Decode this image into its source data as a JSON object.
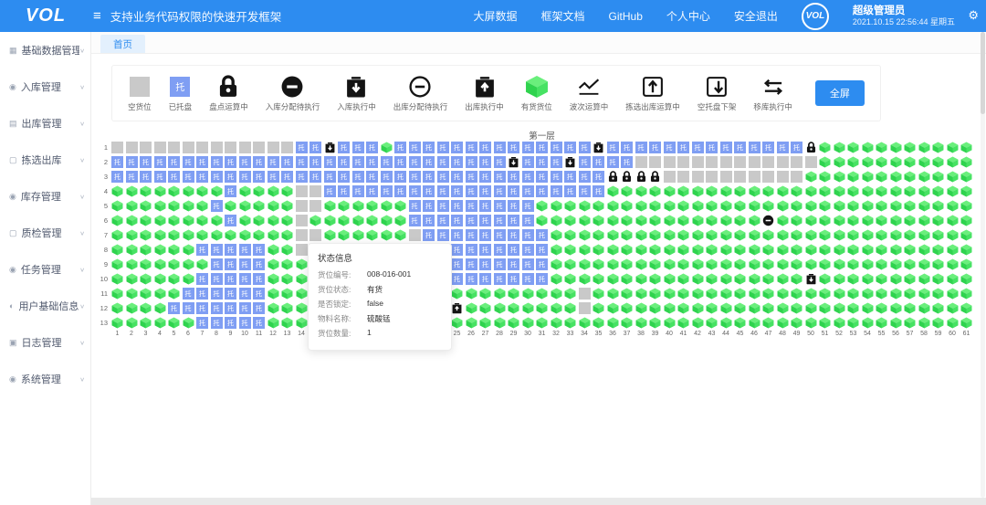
{
  "navbar": {
    "logo": "VOL",
    "menu_icon": "≡",
    "title": "支持业务代码权限的快速开发框架",
    "links": [
      {
        "name": "big-screen-data",
        "label": "大屏数据"
      },
      {
        "name": "framework-docs",
        "label": "框架文档"
      },
      {
        "name": "github",
        "label": "GitHub"
      },
      {
        "name": "personal-center",
        "label": "个人中心"
      },
      {
        "name": "safe-logout",
        "label": "安全退出"
      }
    ],
    "badge": "VOL",
    "user_name": "超级管理员",
    "datetime": "2021.10.15 22:56:44 星期五",
    "gear_icon": "⚙"
  },
  "tabs": [
    {
      "name": "home",
      "label": "首页",
      "active": true
    }
  ],
  "sidebar": {
    "items": [
      {
        "name": "base-data",
        "icon": "▦",
        "label": "基础数据管理"
      },
      {
        "name": "inbound",
        "icon": "◉",
        "label": "入库管理"
      },
      {
        "name": "outbound",
        "icon": "▤",
        "label": "出库管理"
      },
      {
        "name": "pick-out",
        "icon": "▢",
        "label": "拣选出库"
      },
      {
        "name": "inventory",
        "icon": "◉",
        "label": "库存管理"
      },
      {
        "name": "qc",
        "icon": "▢",
        "label": "质检管理"
      },
      {
        "name": "tasks",
        "icon": "◉",
        "label": "任务管理"
      },
      {
        "name": "user-info",
        "icon": "◐",
        "label": "用户基础信息"
      },
      {
        "name": "logs",
        "icon": "▣",
        "label": "日志管理"
      },
      {
        "name": "system",
        "icon": "◉",
        "label": "系统管理"
      }
    ],
    "caret": "∨"
  },
  "legend": {
    "items": [
      {
        "name": "empty-slot",
        "type": "empty",
        "label": "空货位"
      },
      {
        "name": "palletized",
        "type": "pallet",
        "label": "已托盘"
      },
      {
        "name": "stocktake-running",
        "type": "lock",
        "label": "盘点运算中"
      },
      {
        "name": "inbound-assign-pending",
        "type": "minus-filled",
        "label": "入库分配待执行"
      },
      {
        "name": "inbound-executing",
        "type": "box-down",
        "label": "入库执行中"
      },
      {
        "name": "outbound-assign-pending",
        "type": "minus-outline",
        "label": "出库分配待执行"
      },
      {
        "name": "outbound-executing",
        "type": "box-up",
        "label": "出库执行中"
      },
      {
        "name": "occupied-slot",
        "type": "cube",
        "label": "有货货位"
      },
      {
        "name": "wave-running",
        "type": "wave",
        "label": "波次运算中"
      },
      {
        "name": "pick-outbound-running",
        "type": "box-up-outline",
        "label": "拣选出库运算中"
      },
      {
        "name": "empty-pallet-down",
        "type": "box-down-outline",
        "label": "空托盘下架"
      },
      {
        "name": "move-executing",
        "type": "move",
        "label": "移库执行中"
      }
    ],
    "fullscreen_label": "全屏"
  },
  "board": {
    "layer_label": "第一层",
    "pallet_glyph": "托",
    "column_count": 61,
    "row_count": 13,
    "cell_types": {
      "E": "empty",
      "P": "pallet",
      "G": "cube",
      "L": "lock",
      "D": "box-down",
      "U": "box-up",
      "M": "minus-filled",
      "O": "minus-outline"
    },
    "rows": [
      "EEEEEEEEEEEEEPPDPPPGPPPPPPPPPPPPPPDPPPPPPPPPPPPPPLGGGGGGGGGGG",
      "PPPPPPPPPPPPPPPPPPPPPPPPPPPPDPPPDPPPPEEEEEEEEEEEEEGGGGGGGGGGG",
      "PPPPPPPPPPPPPPPPPPPPPPPPPPPPPPPPPPPLLLLEEEEEEEEEEGGGGGGGGGGGG",
      "GGGGGGGGPGGGGEEPPPPPPPPPPPPPPPPPPPPGGGGGGGGGGGGGGGGGGGGGGGGGG",
      "GGGGGGGPGGGGGEEGGGGGGPPPPPPPPPGGGGGGGGGGGGGGGGGGGGGGGGGGGGGGG",
      "GGGGGGGGPGGGGEGGGGGGGPPPPPPPPPGGGGGGGGGGGGGGGGMGGGGGGGGGGGGGG",
      "GGGGGGGGGGGGGEEGGGGGGEPPPPPPPPPGGGGGGGGGGGGGGGGGGGGGGGGGGGGGG",
      "GGGGGGPPPPPGGELGGGGGGEPPPPPPPPPGGGGGGGGGGGGGGGGGGGGGGGGGGGGGG",
      "GGGGGGGPPPPGGGGGGGGGGEPPPPPPPPPGGGGGGGGGGGGGGGGGGGGGGGGGGGGGG",
      "GGGGGGPPPPPGGGGGGGGGGEEPPPPPPPPGGGGGGGGGGGGGGGGGGDGGGGGGGGGGG",
      "GGGGGPPPPPPGGGGGGGGGGGGGGGGGGGGGGEGGGGGGGGGGGGGGGGGGGGGGGGGGG",
      "GGGGPPPPPPPGGGGGGGGGGEGGUGGGGGGGGEGGGGGGGGGGGGGGGGGGGGGGGGGGG",
      "GGGGGGPPPPPGGGGGGGGGGGGGGGGGGGGGGGGGGGGGGGGGGGGGGGGGGGGGGGGGG"
    ],
    "row_labels": [
      1,
      2,
      3,
      4,
      5,
      6,
      7,
      8,
      9,
      10,
      11,
      12,
      13
    ],
    "col_labels": [
      1,
      2,
      3,
      4,
      5,
      6,
      7,
      8,
      9,
      10,
      11,
      12,
      13,
      14,
      15,
      16,
      17,
      18,
      19,
      20,
      21,
      22,
      23,
      24,
      25,
      26,
      27,
      28,
      29,
      30,
      31,
      32,
      33,
      34,
      35,
      36,
      37,
      38,
      39,
      40,
      41,
      42,
      43,
      44,
      45,
      46,
      47,
      48,
      49,
      50,
      51,
      52,
      53,
      54,
      55,
      56,
      57,
      58,
      59,
      60,
      61
    ]
  },
  "tooltip": {
    "title": "状态信息",
    "fields": [
      {
        "name": "slot-code",
        "label": "货位编号:",
        "value": "008-016-001"
      },
      {
        "name": "slot-status",
        "label": "货位状态:",
        "value": "有货"
      },
      {
        "name": "locked",
        "label": "是否锁定:",
        "value": "false"
      },
      {
        "name": "material",
        "label": "物料名称:",
        "value": "硫酸锰"
      },
      {
        "name": "quantity",
        "label": "货位数量:",
        "value": "1"
      }
    ]
  },
  "colors": {
    "navbar": "#2d8cf0",
    "accent": "#2d8cf0",
    "empty_cell": "#c9c9c9",
    "pallet_cell": "#7f9ef3",
    "cube_top": "#6aef7c",
    "cube_left": "#2fd34e",
    "cube_right": "#47e263",
    "icon_black": "#141414"
  }
}
